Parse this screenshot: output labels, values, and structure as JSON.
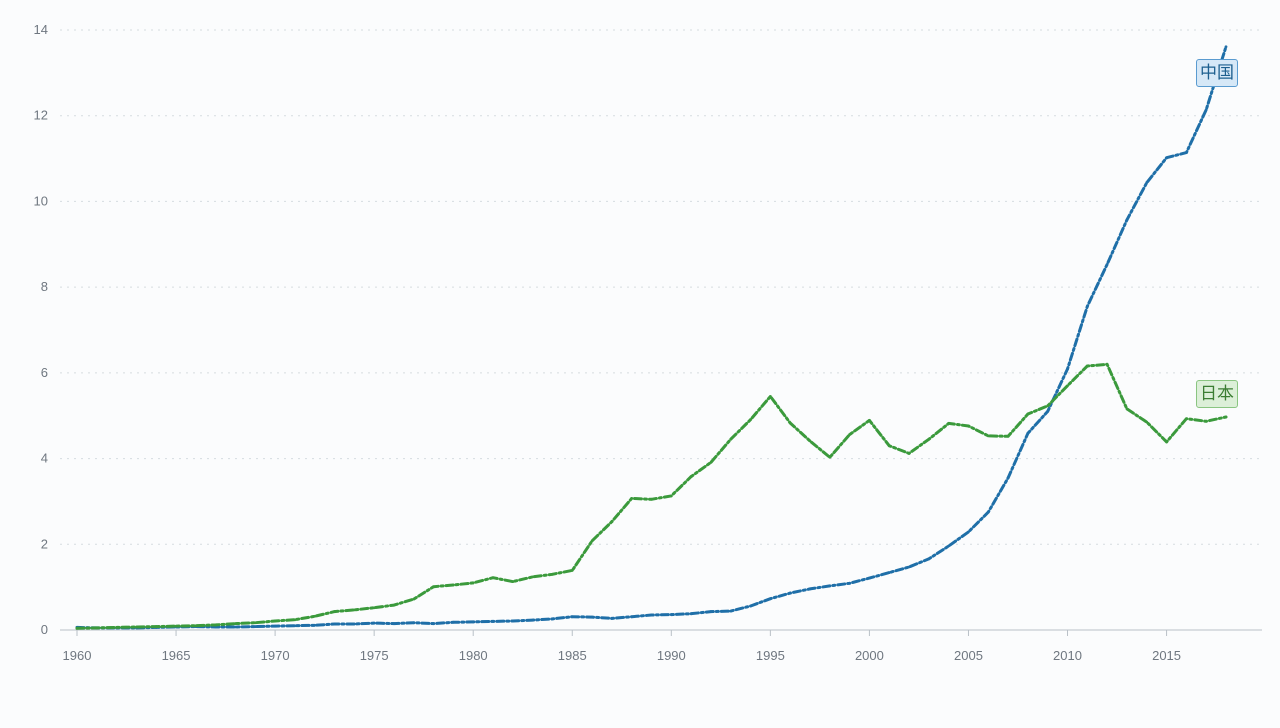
{
  "chart_data": {
    "type": "line",
    "title": "",
    "xlabel": "",
    "ylabel": "",
    "xlim": [
      1960,
      2018
    ],
    "ylim": [
      0,
      14
    ],
    "grid": true,
    "y_ticks": [
      {
        "value": 0,
        "label": "0"
      },
      {
        "value": 2,
        "label": "2"
      },
      {
        "value": 4,
        "label": "4"
      },
      {
        "value": 6,
        "label": "6"
      },
      {
        "value": 8,
        "label": "8"
      },
      {
        "value": 10,
        "label": "10"
      },
      {
        "value": 12,
        "label": "12"
      },
      {
        "value": 14,
        "label": "14"
      }
    ],
    "x_ticks": [
      {
        "value": 1960,
        "label": "1960"
      },
      {
        "value": 1965,
        "label": "1965"
      },
      {
        "value": 1970,
        "label": "1970"
      },
      {
        "value": 1975,
        "label": "1975"
      },
      {
        "value": 1980,
        "label": "1980"
      },
      {
        "value": 1985,
        "label": "1985"
      },
      {
        "value": 1990,
        "label": "1990"
      },
      {
        "value": 1995,
        "label": "1995"
      },
      {
        "value": 2000,
        "label": "2000"
      },
      {
        "value": 2005,
        "label": "2005"
      },
      {
        "value": 2010,
        "label": "2010"
      },
      {
        "value": 2015,
        "label": "2015"
      }
    ],
    "x": [
      1960,
      1961,
      1962,
      1963,
      1964,
      1965,
      1966,
      1967,
      1968,
      1969,
      1970,
      1971,
      1972,
      1973,
      1974,
      1975,
      1976,
      1977,
      1978,
      1979,
      1980,
      1981,
      1982,
      1983,
      1984,
      1985,
      1986,
      1987,
      1988,
      1989,
      1990,
      1991,
      1992,
      1993,
      1994,
      1995,
      1996,
      1997,
      1998,
      1999,
      2000,
      2001,
      2002,
      2003,
      2004,
      2005,
      2006,
      2007,
      2008,
      2009,
      2010,
      2011,
      2012,
      2013,
      2014,
      2015,
      2016,
      2017,
      2018
    ],
    "series": [
      {
        "name": "中国",
        "color": "#1f6fa8",
        "values": [
          0.06,
          0.05,
          0.05,
          0.05,
          0.06,
          0.07,
          0.08,
          0.07,
          0.07,
          0.08,
          0.09,
          0.1,
          0.11,
          0.14,
          0.14,
          0.16,
          0.15,
          0.17,
          0.15,
          0.18,
          0.19,
          0.2,
          0.21,
          0.23,
          0.26,
          0.31,
          0.3,
          0.27,
          0.31,
          0.35,
          0.36,
          0.38,
          0.43,
          0.44,
          0.56,
          0.73,
          0.86,
          0.96,
          1.03,
          1.09,
          1.21,
          1.34,
          1.47,
          1.66,
          1.96,
          2.29,
          2.75,
          3.55,
          4.59,
          5.1,
          6.09,
          7.55,
          8.53,
          9.57,
          10.44,
          11.02,
          11.14,
          12.14,
          13.61
        ]
      },
      {
        "name": "日本",
        "color": "#3b9a3c",
        "values": [
          0.04,
          0.05,
          0.06,
          0.07,
          0.08,
          0.09,
          0.1,
          0.12,
          0.15,
          0.17,
          0.21,
          0.24,
          0.32,
          0.43,
          0.47,
          0.52,
          0.58,
          0.72,
          1.01,
          1.05,
          1.1,
          1.22,
          1.13,
          1.24,
          1.3,
          1.39,
          2.08,
          2.53,
          3.07,
          3.05,
          3.13,
          3.58,
          3.91,
          4.45,
          4.91,
          5.45,
          4.83,
          4.41,
          4.03,
          4.56,
          4.89,
          4.3,
          4.12,
          4.45,
          4.82,
          4.76,
          4.53,
          4.52,
          5.04,
          5.23,
          5.7,
          6.16,
          6.2,
          5.16,
          4.85,
          4.39,
          4.93,
          4.87,
          4.97
        ]
      }
    ],
    "legend": [
      {
        "name": "中国",
        "placement": "right, near end of line"
      },
      {
        "name": "日本",
        "placement": "right, near end of line"
      }
    ]
  }
}
